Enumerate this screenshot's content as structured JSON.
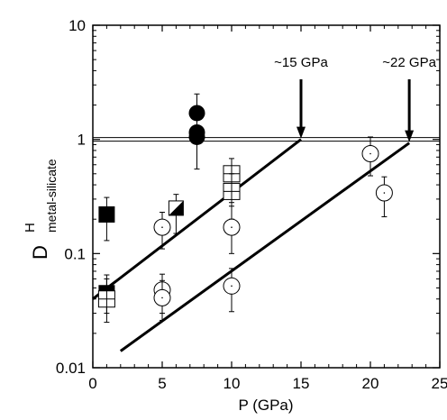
{
  "chart_data": {
    "type": "scatter",
    "xlabel": "P (GPa)",
    "ylabel_main": "D",
    "ylabel_sup": "H",
    "ylabel_sub": "metal-silicate",
    "xlim": [
      0,
      25
    ],
    "ylim": [
      0.01,
      10
    ],
    "yscale": "log",
    "grid": false,
    "x_ticks": [
      "0",
      "5",
      "10",
      "15",
      "20",
      "25"
    ],
    "y_ticks": [
      "0.01",
      "0.1",
      "1",
      "10"
    ],
    "reference_line_y": 1,
    "fit_lines": [
      {
        "x": [
          0,
          15
        ],
        "y": [
          0.04,
          1.0
        ]
      },
      {
        "x": [
          2,
          22.8
        ],
        "y": [
          0.014,
          0.93
        ]
      }
    ],
    "annotations": [
      {
        "text": "~15 GPa",
        "x": 15,
        "y": 1.0
      },
      {
        "text": "~22 GPa",
        "x": 22.8,
        "y": 0.93
      }
    ],
    "series": [
      {
        "marker": "filled-circle",
        "points": [
          {
            "x": 7.5,
            "y": 1.7,
            "yerr": [
              1.1,
              2.5
            ]
          },
          {
            "x": 7.5,
            "y": 1.15,
            "yerr": [
              0.55,
              1.6
            ]
          },
          {
            "x": 7.5,
            "y": 1.05
          }
        ]
      },
      {
        "marker": "filled-square",
        "points": [
          {
            "x": 1,
            "y": 0.22,
            "yerr": [
              0.13,
              0.31
            ]
          },
          {
            "x": 1,
            "y": 0.045,
            "yerr": [
              0.025,
              0.065
            ]
          }
        ]
      },
      {
        "marker": "half-square",
        "points": [
          {
            "x": 6,
            "y": 0.25,
            "yerr": [
              0.15,
              0.33
            ]
          }
        ]
      },
      {
        "marker": "crossed-square",
        "points": [
          {
            "x": 10,
            "y": 0.5,
            "yerr": [
              0.28,
              0.68
            ]
          },
          {
            "x": 10,
            "y": 0.35,
            "yerr": [
              0.2,
              0.5
            ]
          },
          {
            "x": 1,
            "y": 0.04,
            "yerr": [
              0.03,
              0.06
            ]
          }
        ]
      },
      {
        "marker": "open-circle",
        "points": [
          {
            "x": 5,
            "y": 0.17,
            "yerr": [
              0.11,
              0.23
            ]
          },
          {
            "x": 5,
            "y": 0.048,
            "yerr": [
              0.03,
              0.066
            ]
          },
          {
            "x": 5,
            "y": 0.041,
            "yerr": [
              0.026,
              0.058
            ]
          },
          {
            "x": 10,
            "y": 0.17,
            "yerr": [
              0.1,
              0.26
            ]
          },
          {
            "x": 10,
            "y": 0.052,
            "yerr": [
              0.031,
              0.074
            ]
          },
          {
            "x": 20,
            "y": 0.75,
            "yerr": [
              0.48,
              1.05
            ]
          },
          {
            "x": 21,
            "y": 0.34,
            "yerr": [
              0.21,
              0.47
            ]
          }
        ]
      }
    ]
  }
}
